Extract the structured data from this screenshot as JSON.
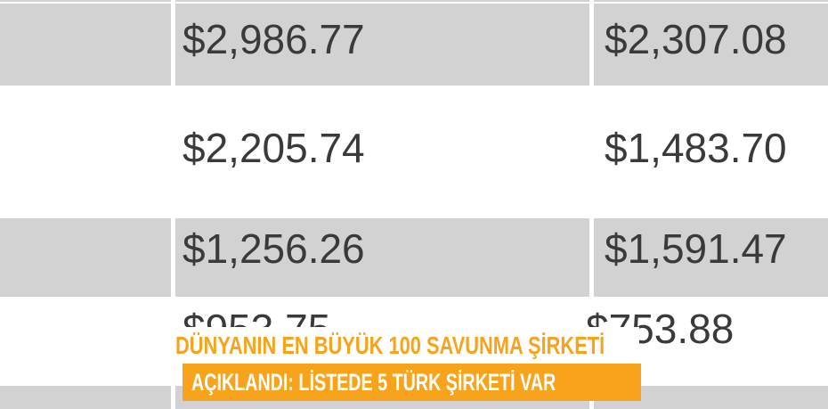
{
  "table": {
    "stripe_color": "#d2d2d2",
    "row_alt_color": "#ffffff",
    "value_text_color": "#3a3a3a",
    "rows": [
      {
        "value1": "$2,986.77",
        "value2": "$2,307.08"
      },
      {
        "value1": "$2,205.74",
        "value2": "$1,483.70"
      },
      {
        "value1": "$1,256.26",
        "value2": "$1,591.47"
      },
      {
        "value1": "$953.75",
        "value2": "$753.88"
      },
      {
        "value1": "",
        "value2": ""
      }
    ]
  },
  "headline": {
    "line1": "DÜNYANIN EN BÜYÜK 100 SAVUNMA ŞİRKETİ",
    "line2": "AÇIKLANDI: LİSTEDE 5 TÜRK ŞİRKETİ VAR",
    "accent_color": "#f7a31c",
    "line1_text_color": "#f7a31c",
    "line2_text_color": "#ffffff"
  }
}
